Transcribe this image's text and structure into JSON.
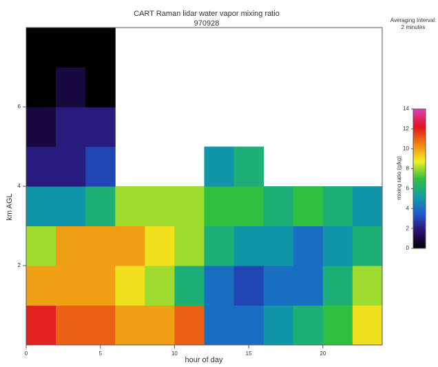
{
  "chart_data": {
    "type": "heatmap",
    "title": "CART Raman lidar water vapor mixing ratio",
    "subtitle": "970928",
    "annotation": [
      "Averaging Interval:",
      "2 minutes"
    ],
    "xlabel": "hour of day",
    "ylabel": "km AGL",
    "colorbar_label": "mixing ratio (g/kg)",
    "xlim": [
      0,
      24
    ],
    "xticks": [
      0,
      5,
      10,
      15,
      20
    ],
    "ylim": [
      0,
      8
    ],
    "yticks": [
      2,
      4,
      6
    ],
    "xbins": [
      0,
      2,
      4,
      6,
      8,
      10,
      12,
      14,
      16,
      18,
      20,
      22,
      24
    ],
    "ybins": [
      0,
      1,
      2,
      3,
      4,
      5,
      6,
      7,
      8
    ],
    "z": [
      [
        12,
        11,
        11,
        10,
        10,
        11,
        4,
        4,
        5,
        6,
        7,
        9
      ],
      [
        10,
        10,
        10,
        9,
        8,
        6,
        4,
        3,
        4,
        4,
        6,
        8
      ],
      [
        8,
        10,
        10,
        10,
        9,
        8,
        6,
        5,
        5,
        4,
        5,
        6
      ],
      [
        5,
        5,
        6,
        8,
        8,
        8,
        7,
        7,
        6,
        7,
        6,
        5
      ],
      [
        2,
        2,
        3,
        null,
        null,
        null,
        5,
        6,
        null,
        null,
        null,
        null
      ],
      [
        1,
        2,
        2,
        null,
        null,
        null,
        null,
        null,
        null,
        null,
        null,
        null
      ],
      [
        0,
        1,
        0,
        null,
        null,
        null,
        null,
        null,
        null,
        null,
        null,
        null
      ],
      [
        0,
        0,
        0,
        null,
        null,
        null,
        null,
        null,
        null,
        null,
        null,
        null
      ]
    ],
    "clim": [
      0,
      14
    ],
    "cticks": [
      0,
      2,
      4,
      6,
      8,
      10,
      12,
      14
    ],
    "colorscale": [
      "#000000",
      "#2a1070",
      "#1e5ad0",
      "#10a0a0",
      "#30c040",
      "#f0f020",
      "#f08010",
      "#e01020",
      "#e040c0"
    ]
  }
}
